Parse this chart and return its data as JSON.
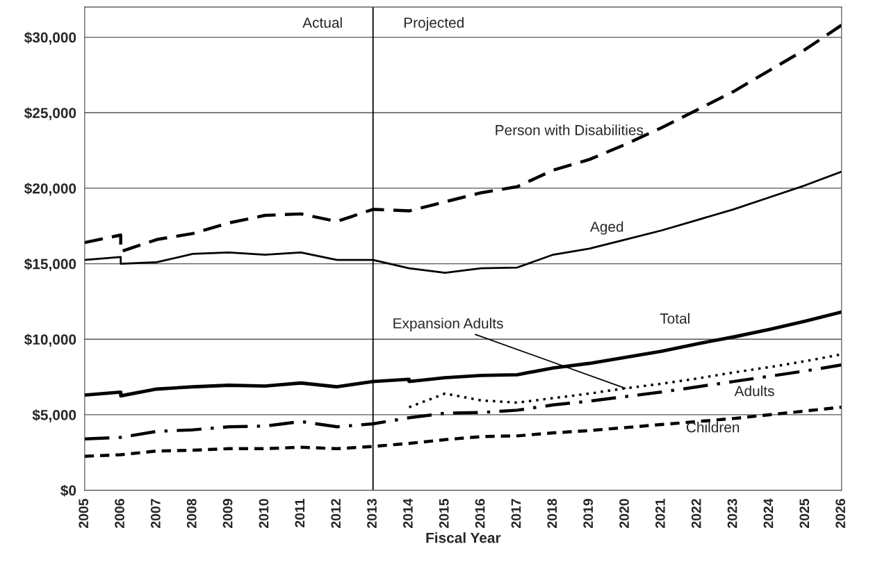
{
  "chart_data": {
    "type": "line",
    "xlabel": "Fiscal Year",
    "xlim": [
      2005,
      2026
    ],
    "xticks": [
      2005,
      2006,
      2007,
      2008,
      2009,
      2010,
      2011,
      2012,
      2013,
      2014,
      2015,
      2016,
      2017,
      2018,
      2019,
      2020,
      2021,
      2022,
      2023,
      2024,
      2025,
      2026
    ],
    "ylim": [
      0,
      32000
    ],
    "yticks": [
      {
        "value": 0,
        "label": "$0"
      },
      {
        "value": 5000,
        "label": "$5,000"
      },
      {
        "value": 10000,
        "label": "$10,000"
      },
      {
        "value": 15000,
        "label": "$15,000"
      },
      {
        "value": 20000,
        "label": "$20,000"
      },
      {
        "value": 25000,
        "label": "$25,000"
      },
      {
        "value": 30000,
        "label": "$30,000"
      }
    ],
    "grid": "y",
    "legend": false,
    "marker": "none",
    "ref_lines": [
      {
        "axis": "x",
        "value": 2013,
        "color": "#000000",
        "line_style": "solid"
      }
    ],
    "annotations": [
      "Actual",
      "Projected"
    ],
    "series": [
      {
        "name": "Person with Disabilities",
        "color": "#000000",
        "line_style": "dashed",
        "x": [
          2005,
          2006,
          2006,
          2007,
          2008,
          2009,
          2010,
          2011,
          2012,
          2013,
          2014,
          2015,
          2016,
          2017,
          2018,
          2019,
          2020,
          2021,
          2022,
          2023,
          2024,
          2025,
          2026
        ],
        "values": [
          16400,
          16900,
          15800,
          16600,
          17000,
          17700,
          18200,
          18300,
          17800,
          18600,
          18500,
          19100,
          19700,
          20100,
          21200,
          21900,
          22900,
          24000,
          25200,
          26400,
          27800,
          29200,
          30800
        ]
      },
      {
        "name": "Aged",
        "color": "#000000",
        "line_style": "solid",
        "x": [
          2005,
          2006,
          2006,
          2007,
          2008,
          2009,
          2010,
          2011,
          2012,
          2013,
          2014,
          2015,
          2016,
          2017,
          2018,
          2019,
          2020,
          2021,
          2022,
          2023,
          2024,
          2025,
          2026
        ],
        "values": [
          15250,
          15450,
          15000,
          15100,
          15650,
          15750,
          15600,
          15750,
          15250,
          15250,
          14700,
          14400,
          14700,
          14750,
          15600,
          16000,
          16600,
          17200,
          17900,
          18600,
          19400,
          20200,
          21100
        ]
      },
      {
        "name": "Total",
        "color": "#000000",
        "line_style": "solid",
        "x": [
          2005,
          2006,
          2006,
          2007,
          2008,
          2009,
          2010,
          2011,
          2012,
          2013,
          2014,
          2014,
          2015,
          2016,
          2017,
          2018,
          2019,
          2020,
          2021,
          2022,
          2023,
          2024,
          2025,
          2026
        ],
        "values": [
          6300,
          6500,
          6250,
          6700,
          6850,
          6950,
          6900,
          7100,
          6850,
          7200,
          7350,
          7200,
          7450,
          7600,
          7650,
          8100,
          8400,
          8800,
          9200,
          9700,
          10150,
          10650,
          11200,
          11800
        ]
      },
      {
        "name": "Expansion Adults",
        "color": "#000000",
        "line_style": "dotted",
        "x": [
          2014,
          2015,
          2016,
          2017,
          2018,
          2019,
          2020,
          2021,
          2022,
          2023,
          2024,
          2025,
          2026
        ],
        "values": [
          5500,
          6400,
          5950,
          5800,
          6100,
          6400,
          6750,
          7050,
          7400,
          7800,
          8150,
          8550,
          9000
        ]
      },
      {
        "name": "Adults",
        "color": "#000000",
        "line_style": "dashdot",
        "x": [
          2005,
          2006,
          2007,
          2008,
          2009,
          2010,
          2011,
          2012,
          2013,
          2014,
          2015,
          2016,
          2017,
          2018,
          2019,
          2020,
          2021,
          2022,
          2023,
          2024,
          2025,
          2026
        ],
        "values": [
          3400,
          3500,
          3900,
          4000,
          4200,
          4250,
          4550,
          4200,
          4400,
          4800,
          5100,
          5150,
          5300,
          5650,
          5900,
          6200,
          6500,
          6850,
          7200,
          7550,
          7900,
          8300
        ]
      },
      {
        "name": "Children",
        "color": "#000000",
        "line_style": "dashed",
        "x": [
          2005,
          2006,
          2007,
          2008,
          2009,
          2010,
          2011,
          2012,
          2013,
          2014,
          2015,
          2016,
          2017,
          2018,
          2019,
          2020,
          2021,
          2022,
          2023,
          2024,
          2025,
          2026
        ],
        "values": [
          2250,
          2350,
          2600,
          2650,
          2750,
          2750,
          2850,
          2750,
          2900,
          3100,
          3350,
          3550,
          3600,
          3800,
          3950,
          4150,
          4350,
          4550,
          4750,
          5000,
          5250,
          5500
        ]
      }
    ]
  }
}
